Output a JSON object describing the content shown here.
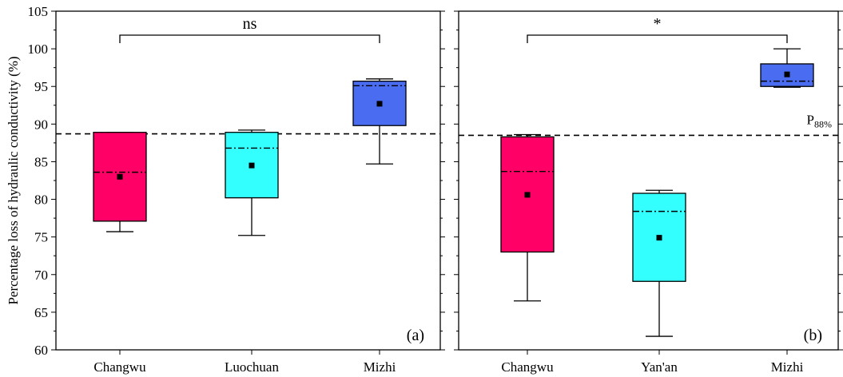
{
  "chart_data": {
    "type": "box",
    "ylabel": "Percentage loss of hydraulic conductivity (%)",
    "ylim": [
      60,
      105
    ],
    "yticks": [
      60,
      65,
      70,
      75,
      80,
      85,
      90,
      95,
      100,
      105
    ],
    "grid": false,
    "mean_marker": "square",
    "median_line": "dash-dot",
    "panels": [
      {
        "panel_label": "(a)",
        "significance": "ns",
        "reference_line": {
          "value": 88.7,
          "style": "dashed"
        },
        "categories": [
          "Changwu",
          "Luochuan",
          "Mizhi"
        ],
        "boxes": [
          {
            "category": "Changwu",
            "color": "#ff0066",
            "whisker_low": 75.7,
            "q1": 77.1,
            "median": 83.6,
            "q3": 88.9,
            "whisker_high": 88.9,
            "mean": 83.0
          },
          {
            "category": "Luochuan",
            "color": "#33ffff",
            "whisker_low": 75.2,
            "q1": 80.2,
            "median": 86.8,
            "q3": 88.9,
            "whisker_high": 89.2,
            "mean": 84.5
          },
          {
            "category": "Mizhi",
            "color": "#4a6cf0",
            "whisker_low": 84.7,
            "q1": 89.8,
            "median": 95.1,
            "q3": 95.7,
            "whisker_high": 96.0,
            "mean": 92.7
          }
        ]
      },
      {
        "panel_label": "(b)",
        "significance": "*",
        "reference_line": {
          "value": 88.5,
          "style": "dashed",
          "label": "P",
          "label_sub": "88%"
        },
        "categories": [
          "Changwu",
          "Yan'an",
          "Mizhi"
        ],
        "boxes": [
          {
            "category": "Changwu",
            "color": "#ff0066",
            "whisker_low": 66.5,
            "q1": 73.0,
            "median": 83.7,
            "q3": 88.3,
            "whisker_high": 88.6,
            "mean": 80.6
          },
          {
            "category": "Yan'an",
            "color": "#33ffff",
            "whisker_low": 61.8,
            "q1": 69.1,
            "median": 78.4,
            "q3": 80.8,
            "whisker_high": 81.2,
            "mean": 74.9
          },
          {
            "category": "Mizhi",
            "color": "#4a6cf0",
            "whisker_low": 94.9,
            "q1": 95.0,
            "median": 95.7,
            "q3": 98.0,
            "whisker_high": 100.0,
            "mean": 96.6
          }
        ]
      }
    ]
  }
}
